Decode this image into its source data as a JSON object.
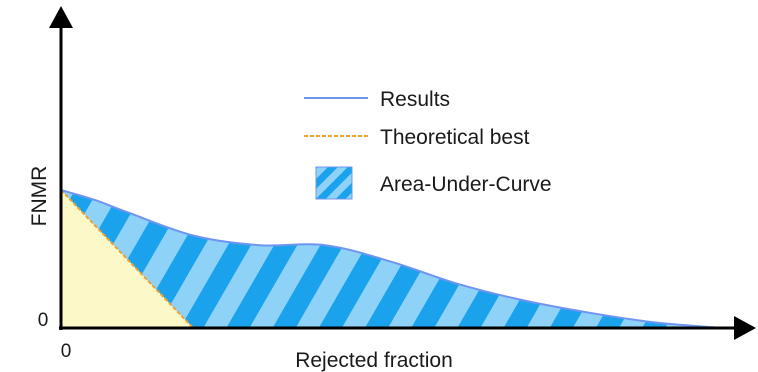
{
  "chart_data": {
    "type": "area",
    "title": "",
    "xlabel": "Rejected fraction",
    "ylabel": "FNMR",
    "x_ticks": [
      "0"
    ],
    "y_ticks": [
      "0"
    ],
    "xlim": [
      0,
      1
    ],
    "ylim": [
      0,
      1
    ],
    "grid": false,
    "legend_position": "top-center",
    "series": [
      {
        "name": "Results",
        "style": "solid-line",
        "color": "#6f95f0",
        "x": [
          0,
          0.05,
          0.1,
          0.2,
          0.3,
          0.4,
          0.5,
          0.6,
          0.7,
          0.8,
          0.9,
          1.0
        ],
        "y": [
          1.0,
          0.93,
          0.84,
          0.67,
          0.6,
          0.6,
          0.48,
          0.32,
          0.2,
          0.11,
          0.04,
          0.0
        ]
      },
      {
        "name": "Theoretical best",
        "style": "dashed-line",
        "color": "#f0a030",
        "x": [
          0,
          0.2
        ],
        "y": [
          1.0,
          0.0
        ]
      }
    ],
    "area_under_curve": {
      "name": "Area-Under-Curve",
      "fill_colors": [
        "#1aa3ec",
        "#8fd2f8"
      ],
      "pattern": "diagonal-stripes"
    },
    "theoretical_region_color": "#fcf8c8",
    "axis_color": "#000000"
  }
}
